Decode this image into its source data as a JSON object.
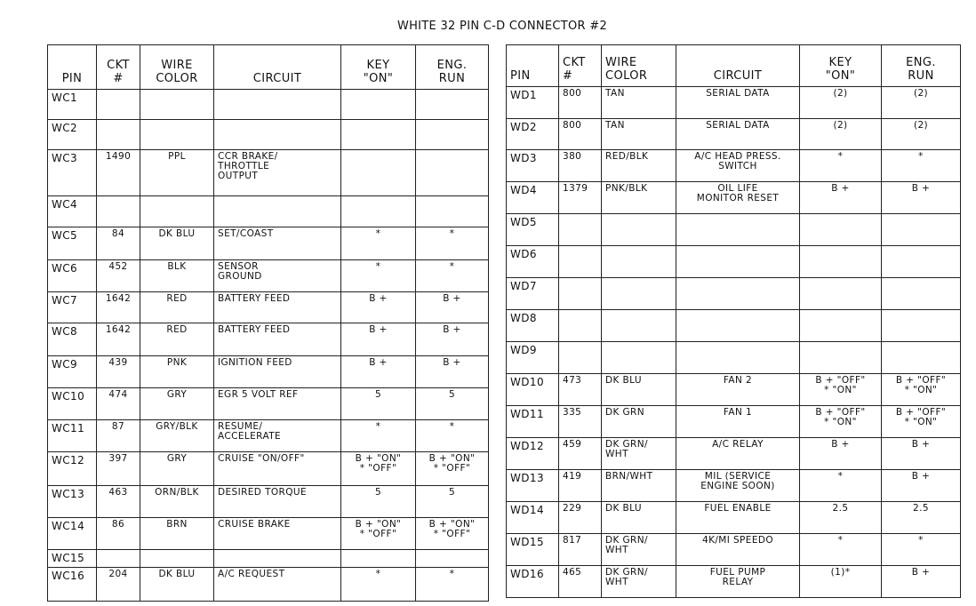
{
  "title": "WHITE 32 PIN C-D CONNECTOR #2",
  "headers": [
    "PIN",
    "CKT\n#",
    "WIRE\nCOLOR",
    "CIRCUIT",
    "KEY\n\"ON\"",
    "ENG.\nRUN"
  ],
  "left_table": {
    "rows": [
      {
        "pin": "WC1",
        "ckt": "",
        "wire": "",
        "circuit": "",
        "key_on": "",
        "eng_run": ""
      },
      {
        "pin": "WC2",
        "ckt": "",
        "wire": "",
        "circuit": "",
        "key_on": "",
        "eng_run": ""
      },
      {
        "pin": "WC3",
        "ckt": "1490",
        "wire": "PPL",
        "circuit": "CCR BRAKE/\nTHROTTLE\nOUTPUT",
        "key_on": "",
        "eng_run": ""
      },
      {
        "pin": "WC4",
        "ckt": "",
        "wire": "",
        "circuit": "",
        "key_on": "",
        "eng_run": ""
      },
      {
        "pin": "WC5",
        "ckt": "84",
        "wire": "DK BLU",
        "circuit": "SET/COAST",
        "key_on": "*",
        "eng_run": "*"
      },
      {
        "pin": "WC6",
        "ckt": "452",
        "wire": "BLK",
        "circuit": "SENSOR\nGROUND",
        "key_on": "*",
        "eng_run": "*"
      },
      {
        "pin": "WC7",
        "ckt": "1642",
        "wire": "RED",
        "circuit": "BATTERY FEED",
        "key_on": "B +",
        "eng_run": "B +"
      },
      {
        "pin": "WC8",
        "ckt": "1642",
        "wire": "RED",
        "circuit": "BATTERY FEED",
        "key_on": "B +",
        "eng_run": "B +"
      },
      {
        "pin": "WC9",
        "ckt": "439",
        "wire": "PNK",
        "circuit": "IGNITION FEED",
        "key_on": "B +",
        "eng_run": "B +"
      },
      {
        "pin": "WC10",
        "ckt": "474",
        "wire": "GRY",
        "circuit": "EGR 5 VOLT REF",
        "key_on": "5",
        "eng_run": "5"
      },
      {
        "pin": "WC11",
        "ckt": "87",
        "wire": "GRY/BLK",
        "circuit": "RESUME/\nACCELERATE",
        "key_on": "*",
        "eng_run": "*"
      },
      {
        "pin": "WC12",
        "ckt": "397",
        "wire": "GRY",
        "circuit": "CRUISE \"ON/OFF\"",
        "key_on": "B + \"ON\"\n* \"OFF\"",
        "eng_run": "B + \"ON\"\n* \"OFF\""
      },
      {
        "pin": "WC13",
        "ckt": "463",
        "wire": "ORN/BLK",
        "circuit": "DESIRED TORQUE",
        "key_on": "5",
        "eng_run": "5"
      },
      {
        "pin": "WC14",
        "ckt": "86",
        "wire": "BRN",
        "circuit": "CRUISE BRAKE",
        "key_on": "B + \"ON\"\n* \"OFF\"",
        "eng_run": "B + \"ON\"\n* \"OFF\""
      },
      {
        "pin": "WC15",
        "ckt": "",
        "wire": "",
        "circuit": "",
        "key_on": "",
        "eng_run": ""
      },
      {
        "pin": "WC16",
        "ckt": "204",
        "wire": "DK BLU",
        "circuit": "A/C REQUEST",
        "key_on": "*",
        "eng_run": "*"
      }
    ]
  },
  "right_table": {
    "rows": [
      {
        "pin": "WD1",
        "ckt": "800",
        "wire": "TAN",
        "circuit": "SERIAL DATA",
        "key_on": "(2)",
        "eng_run": "(2)"
      },
      {
        "pin": "WD2",
        "ckt": "800",
        "wire": "TAN",
        "circuit": "SERIAL DATA",
        "key_on": "(2)",
        "eng_run": "(2)"
      },
      {
        "pin": "WD3",
        "ckt": "380",
        "wire": "RED/BLK",
        "circuit": "A/C HEAD PRESS.\nSWITCH",
        "key_on": "*",
        "eng_run": "*"
      },
      {
        "pin": "WD4",
        "ckt": "1379",
        "wire": "PNK/BLK",
        "circuit": "OIL LIFE\nMONITOR RESET",
        "key_on": "B +",
        "eng_run": "B +"
      },
      {
        "pin": "WD5",
        "ckt": "",
        "wire": "",
        "circuit": "",
        "key_on": "",
        "eng_run": ""
      },
      {
        "pin": "WD6",
        "ckt": "",
        "wire": "",
        "circuit": "",
        "key_on": "",
        "eng_run": ""
      },
      {
        "pin": "WD7",
        "ckt": "",
        "wire": "",
        "circuit": "",
        "key_on": "",
        "eng_run": ""
      },
      {
        "pin": "WD8",
        "ckt": "",
        "wire": "",
        "circuit": "",
        "key_on": "",
        "eng_run": ""
      },
      {
        "pin": "WD9",
        "ckt": "",
        "wire": "",
        "circuit": "",
        "key_on": "",
        "eng_run": ""
      },
      {
        "pin": "WD10",
        "ckt": "473",
        "wire": "DK BLU",
        "circuit": "FAN 2",
        "key_on": "B + \"OFF\"\n* \"ON\"",
        "eng_run": "B + \"OFF\"\n* \"ON\""
      },
      {
        "pin": "WD11",
        "ckt": "335",
        "wire": "DK GRN",
        "circuit": "FAN 1",
        "key_on": "B + \"OFF\"\n* \"ON\"",
        "eng_run": "B + \"OFF\"\n* \"ON\""
      },
      {
        "pin": "WD12",
        "ckt": "459",
        "wire": "DK GRN/\nWHT",
        "circuit": "A/C RELAY",
        "key_on": "B +",
        "eng_run": "B +"
      },
      {
        "pin": "WD13",
        "ckt": "419",
        "wire": "BRN/WHT",
        "circuit": "MIL (SERVICE\nENGINE SOON)",
        "key_on": "*",
        "eng_run": "B +"
      },
      {
        "pin": "WD14",
        "ckt": "229",
        "wire": "DK BLU",
        "circuit": "FUEL ENABLE",
        "key_on": "2.5",
        "eng_run": "2.5"
      },
      {
        "pin": "WD15",
        "ckt": "817",
        "wire": "DK GRN/\nWHT",
        "circuit": "4K/MI SPEEDO",
        "key_on": "*",
        "eng_run": "*"
      },
      {
        "pin": "WD16",
        "ckt": "465",
        "wire": "DK GRN/\nWHT",
        "circuit": "FUEL PUMP\nRELAY",
        "key_on": "(1)*",
        "eng_run": "B +"
      }
    ]
  }
}
